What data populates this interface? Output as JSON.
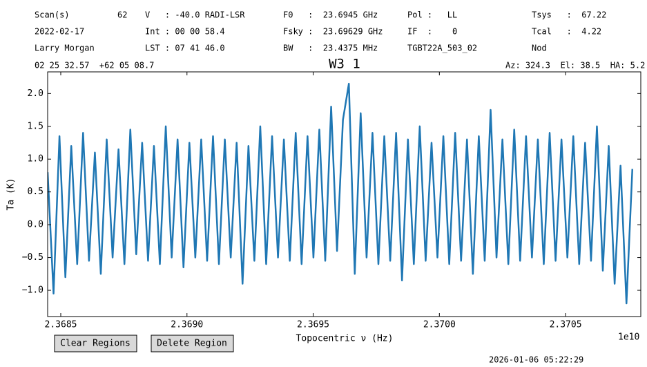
{
  "header": [
    "Scan(s)",
    "62",
    "V   : -40.0 RADI-LSR",
    "F0   :  23.6945 GHz",
    "Pol :   LL",
    "Tsys   :  67.22",
    "2022-02-17",
    "Int : 00 00 58.4",
    "Fsky :  23.69629 GHz",
    "IF  :    0",
    "Tcal   :  4.22",
    "Larry Morgan",
    "LST : 07 41 46.0",
    "BW   :  23.4375 MHz",
    "TGBT22A_503_02",
    "Nod",
    "02 25 32.57  +62 05 08.7",
    "Az: 324.3  El: 38.5  HA: 5.2"
  ],
  "buttons": [
    "Clear Regions",
    "Delete Region"
  ],
  "timestamp": "2026-01-06 05:22:29",
  "chart_data": {
    "type": "line",
    "title": "W3 1",
    "xlabel": "Topocentric ν (Hz)",
    "ylabel": "Ta (K)",
    "x_offset_label": "1e10",
    "color": "#1f77b4",
    "xlim": [
      23684480000,
      23707980000
    ],
    "xticks": [
      {
        "value": 23685000000,
        "label": "2.3685"
      },
      {
        "value": 23690000000,
        "label": "2.3690"
      },
      {
        "value": 23695000000,
        "label": "2.3695"
      },
      {
        "value": 23700000000,
        "label": "2.3700"
      },
      {
        "value": 23705000000,
        "label": "2.3705"
      }
    ],
    "ylim": [
      -1.4,
      2.33
    ],
    "yticks": [
      {
        "value": -1,
        "label": "−1.0"
      },
      {
        "value": -0.5,
        "label": "−0.5"
      },
      {
        "value": 0,
        "label": "0.0"
      },
      0.5,
      {
        "value": 1,
        "label": "1.0"
      },
      1.5,
      {
        "value": 2,
        "label": "2.0"
      }
    ],
    "x": [
      23684480000,
      23684714000,
      23684948000,
      23685182000,
      23685416000,
      23685650000,
      23685884000,
      23686118000,
      23686352000,
      23686586000,
      23686820000,
      23687054000,
      23687288000,
      23687522000,
      23687756000,
      23687990000,
      23688224000,
      23688458000,
      23688692000,
      23688926000,
      23689160000,
      23689394000,
      23689628000,
      23689862000,
      23690096000,
      23690330000,
      23690564000,
      23690798000,
      23691032000,
      23691266000,
      23691500000,
      23691734000,
      23691968000,
      23692202000,
      23692436000,
      23692670000,
      23692904000,
      23693138000,
      23693372000,
      23693606000,
      23693840000,
      23694074000,
      23694308000,
      23694542000,
      23694776000,
      23695010000,
      23695244000,
      23695478000,
      23695712000,
      23695946000,
      23696180000,
      23696414000,
      23696648000,
      23696882000,
      23697116000,
      23697350000,
      23697584000,
      23697818000,
      23698052000,
      23698286000,
      23698520000,
      23698754000,
      23698988000,
      23699222000,
      23699456000,
      23699690000,
      23699924000,
      23700158000,
      23700392000,
      23700626000,
      23700860000,
      23701094000,
      23701328000,
      23701562000,
      23701796000,
      23702030000,
      23702264000,
      23702498000,
      23702732000,
      23702966000,
      23703200000,
      23703434000,
      23703668000,
      23703902000,
      23704136000,
      23704370000,
      23704604000,
      23704838000,
      23705072000,
      23705306000,
      23705540000,
      23705774000,
      23706008000,
      23706242000,
      23706476000,
      23706710000,
      23706944000,
      23707178000,
      23707412000,
      23707646000
    ],
    "values": [
      0.8,
      -1.05,
      1.35,
      -0.8,
      1.2,
      -0.6,
      1.4,
      -0.55,
      1.1,
      -0.75,
      1.3,
      -0.5,
      1.15,
      -0.6,
      1.45,
      -0.45,
      1.25,
      -0.55,
      1.2,
      -0.6,
      1.5,
      -0.5,
      1.3,
      -0.65,
      1.25,
      -0.5,
      1.3,
      -0.55,
      1.35,
      -0.6,
      1.3,
      -0.5,
      1.25,
      -0.9,
      1.2,
      -0.55,
      1.5,
      -0.6,
      1.35,
      -0.5,
      1.3,
      -0.55,
      1.4,
      -0.6,
      1.35,
      -0.5,
      1.45,
      -0.55,
      1.8,
      -0.4,
      1.6,
      2.15,
      -0.75,
      1.7,
      -0.5,
      1.4,
      -0.6,
      1.35,
      -0.55,
      1.4,
      -0.85,
      1.3,
      -0.6,
      1.5,
      -0.55,
      1.25,
      -0.5,
      1.35,
      -0.6,
      1.4,
      -0.55,
      1.3,
      -0.75,
      1.35,
      -0.55,
      1.75,
      -0.5,
      1.3,
      -0.6,
      1.45,
      -0.55,
      1.35,
      -0.5,
      1.3,
      -0.6,
      1.4,
      -0.55,
      1.3,
      -0.5,
      1.35,
      -0.6,
      1.25,
      -0.55,
      1.5,
      -0.7,
      1.2,
      -0.9,
      0.9,
      -1.2,
      0.85
    ]
  }
}
